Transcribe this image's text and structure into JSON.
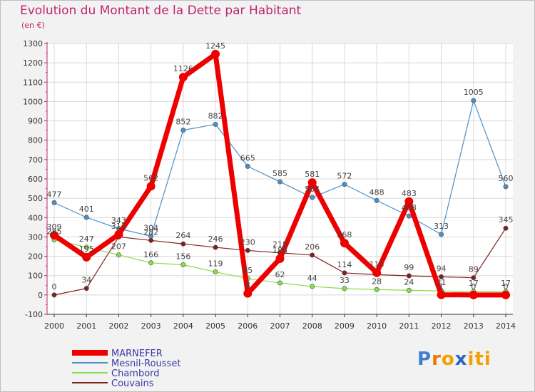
{
  "chart_data": {
    "type": "line",
    "title": "Evolution du Montant de la Dette par Habitant",
    "ylabel": "(en €)",
    "xlabel": "",
    "categories": [
      "2000",
      "2001",
      "2002",
      "2003",
      "2004",
      "2005",
      "2006",
      "2007",
      "2008",
      "2009",
      "2010",
      "2011",
      "2012",
      "2013",
      "2014"
    ],
    "ylim": [
      -100,
      1300
    ],
    "yticks": [
      "-100",
      "0",
      "100",
      "200",
      "300",
      "400",
      "500",
      "600",
      "700",
      "800",
      "900",
      "1000",
      "1100",
      "1200",
      "1300"
    ],
    "grid": true,
    "legend_position": "bottom-left",
    "series": [
      {
        "name": "MARNEFER",
        "color": "#ee0000",
        "values": [
          309,
          195,
          313,
          562,
          1126,
          1245,
          8,
          188,
          581,
          268,
          115,
          483,
          1,
          0,
          0
        ],
        "labels": [
          "309",
          "195",
          "313",
          "562",
          "1126",
          "1245",
          "8",
          "188",
          "581",
          "268",
          "115",
          "483",
          "1",
          "0",
          "0"
        ]
      },
      {
        "name": "Mesnil-Rousset",
        "color": "#4a90c8",
        "values": [
          477,
          401,
          343,
          304,
          852,
          882,
          665,
          585,
          504,
          572,
          488,
          408,
          313,
          1005,
          560
        ],
        "labels": [
          "477",
          "401",
          "343",
          "304",
          "852",
          "882",
          "665",
          "585",
          "504",
          "572",
          "488",
          "408",
          "313",
          "1005",
          "560"
        ]
      },
      {
        "name": "Chambord",
        "color": "#88dd44",
        "values": [
          285,
          247,
          207,
          166,
          156,
          119,
          85,
          62,
          44,
          33,
          28,
          24,
          21,
          17,
          17
        ],
        "labels": [
          "285",
          "247",
          "207",
          "166",
          "156",
          "119",
          "85",
          "62",
          "44",
          "33",
          "28",
          "24",
          "21",
          "17",
          "17"
        ]
      },
      {
        "name": "Couvains",
        "color": "#802020",
        "values": [
          0,
          34,
          300,
          282,
          264,
          246,
          230,
          218,
          206,
          114,
          105,
          99,
          94,
          89,
          345
        ],
        "labels": [
          "0",
          "34",
          "",
          "282",
          "264",
          "246",
          "230",
          "218",
          "206",
          "114",
          "",
          "99",
          "94",
          "89",
          "345"
        ]
      }
    ]
  },
  "logo": {
    "letters": [
      "P",
      "r",
      "o",
      "x",
      "i",
      "t",
      "i"
    ],
    "colors": [
      "#3c7fd0",
      "#f07800",
      "#f3a000",
      "#2a66c0",
      "#f3a000",
      "#f3a000",
      "#f3a000"
    ]
  }
}
